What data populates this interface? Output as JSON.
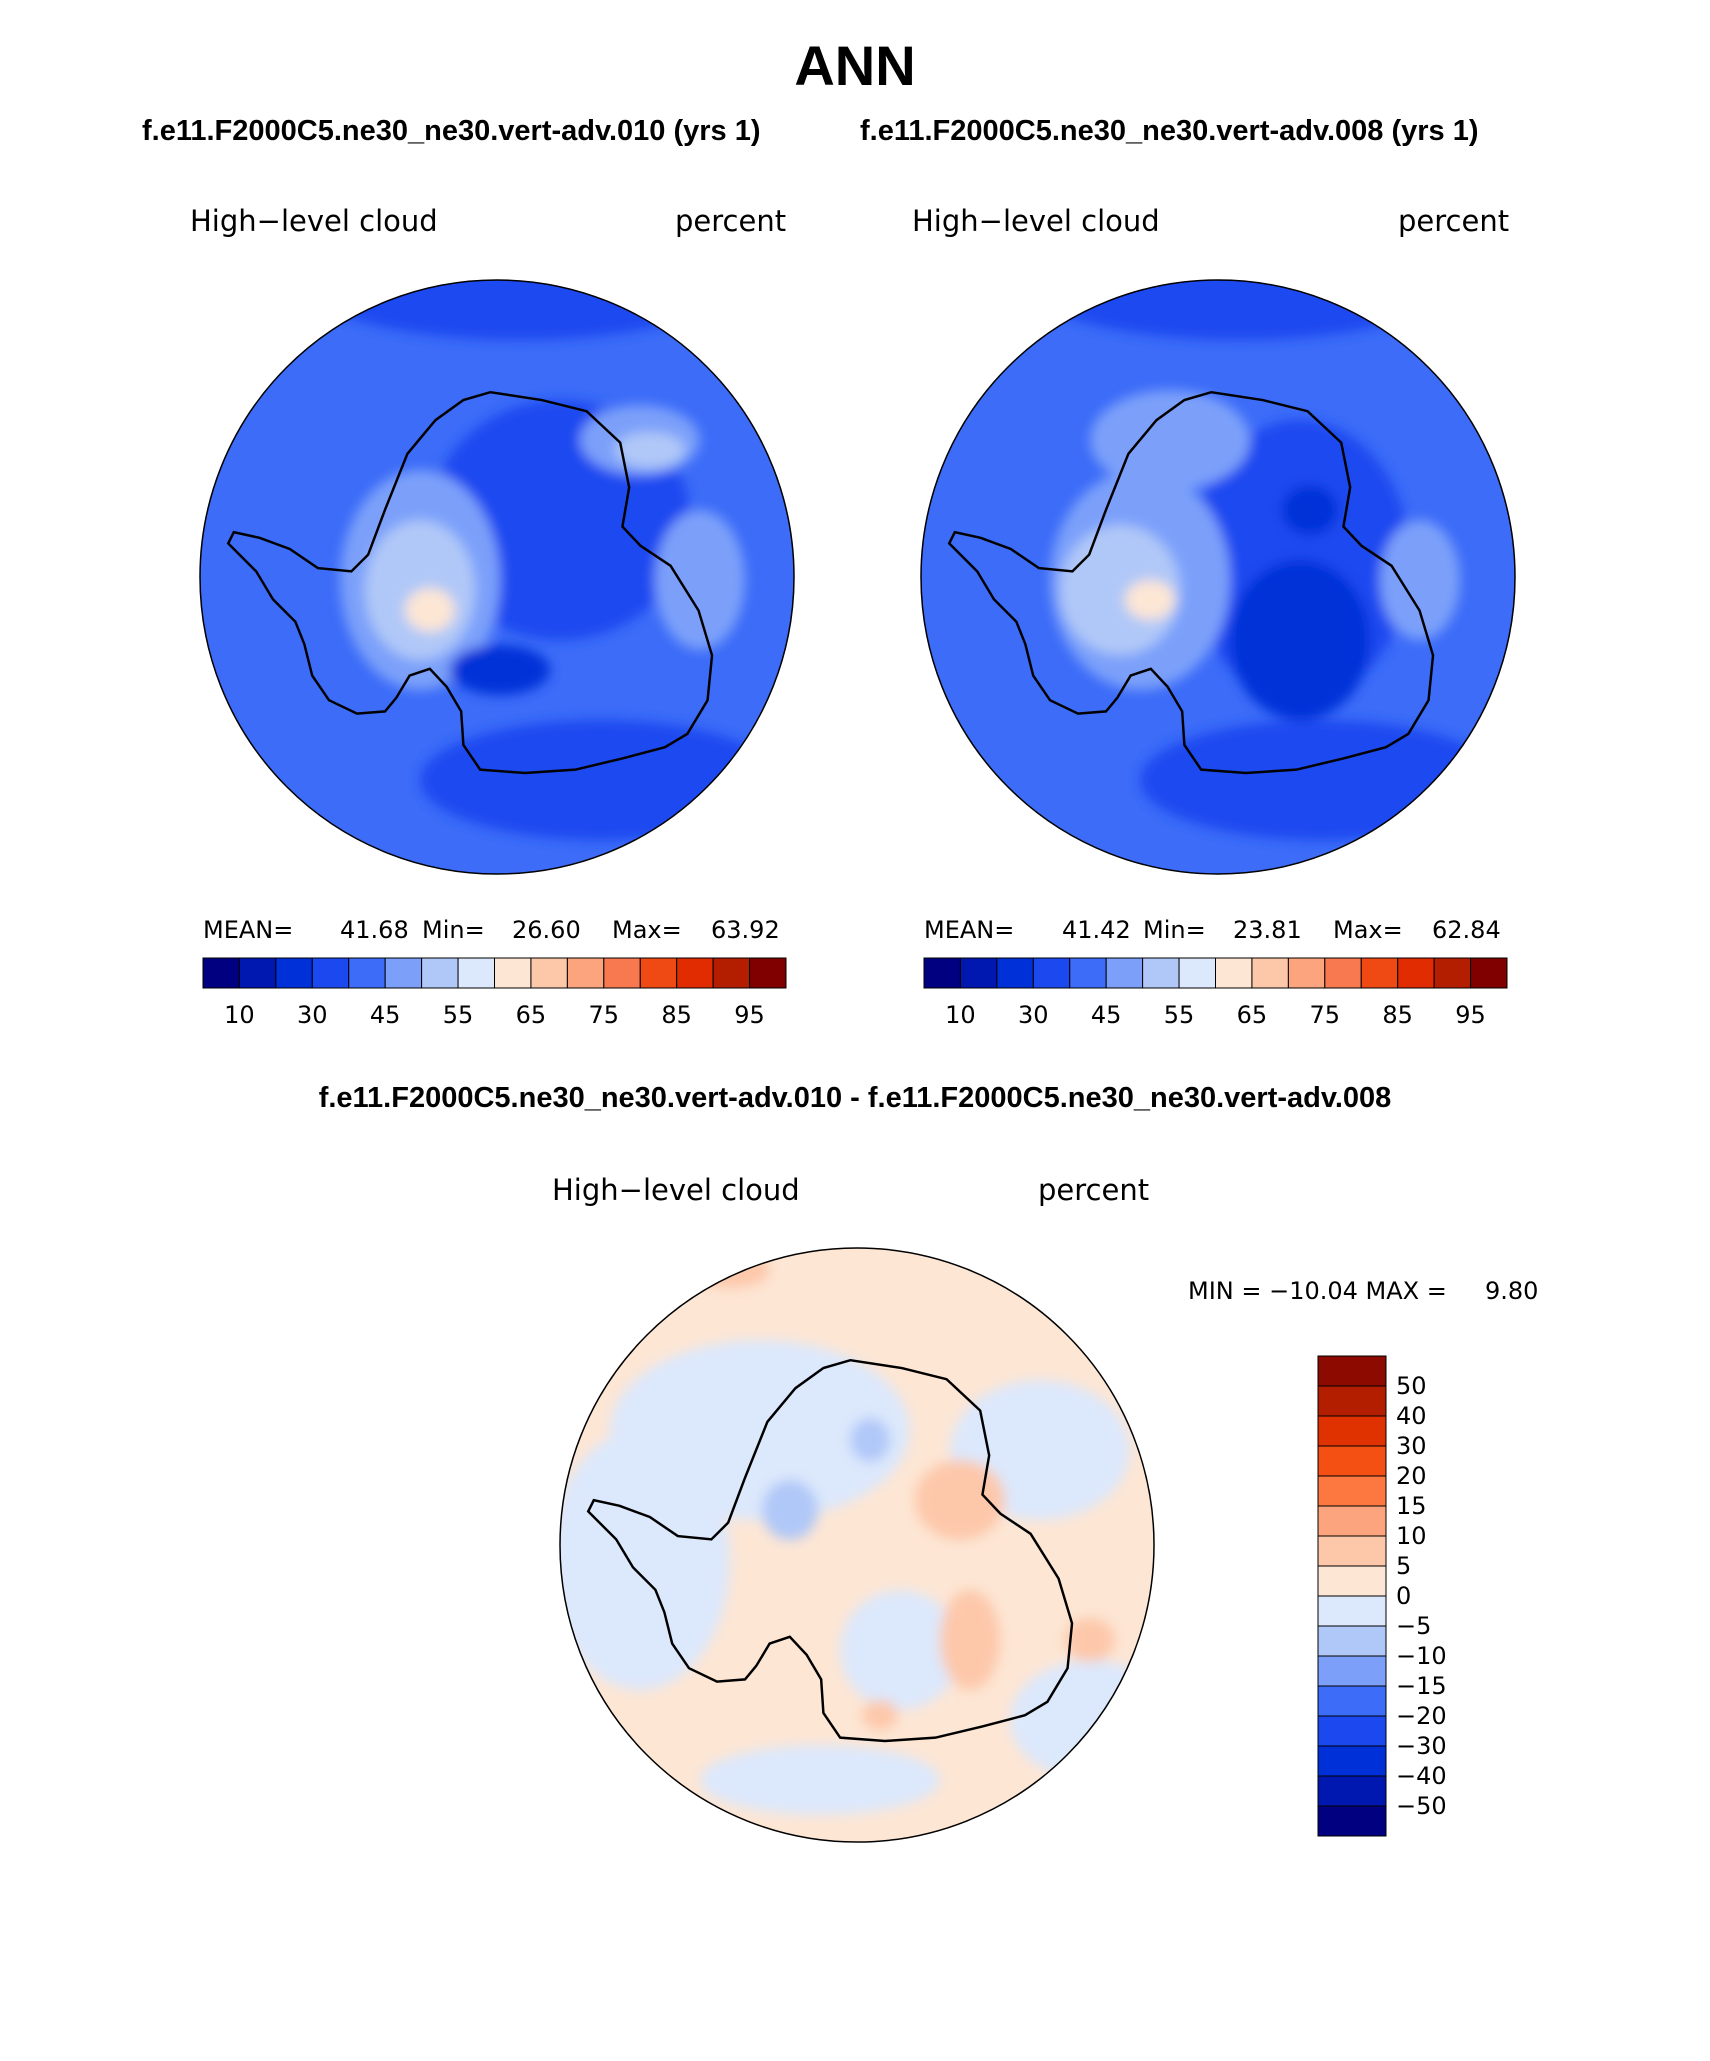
{
  "figure": {
    "title": "ANN",
    "subtitle_left": "f.e11.F2000C5.ne30_ne30.vert-adv.010 (yrs 1)",
    "subtitle_right": "f.e11.F2000C5.ne30_ne30.vert-adv.008 (yrs 1)",
    "diff_title": "f.e11.F2000C5.ne30_ne30.vert-adv.010 - f.e11.F2000C5.ne30_ne30.vert-adv.008"
  },
  "panels": {
    "left": {
      "variable": "High−level cloud",
      "units": "percent",
      "stats": {
        "mean_label": "MEAN=",
        "mean": "41.68",
        "min_label": "Min=",
        "min": "26.60",
        "max_label": "Max=",
        "max": "63.92"
      }
    },
    "right": {
      "variable": "High−level cloud",
      "units": "percent",
      "stats": {
        "mean_label": "MEAN=",
        "mean": "41.42",
        "min_label": "Min=",
        "min": "23.81",
        "max_label": "Max=",
        "max": "62.84"
      }
    },
    "diff": {
      "variable": "High−level cloud",
      "units": "percent",
      "minmax_text": "MIN = −10.04 MAX =     9.80"
    }
  },
  "chart_data": [
    {
      "type": "heatmap",
      "projection": "south polar stereographic",
      "title": "High−level cloud",
      "units": "percent",
      "stats": {
        "mean": 41.68,
        "min": 26.6,
        "max": 63.92
      },
      "colorbar": {
        "colors": [
          "#000080",
          "#0018b0",
          "#0030d8",
          "#1c48f0",
          "#3c6cf8",
          "#7ca0fa",
          "#b0c8f8",
          "#dce8fc",
          "#fde6d4",
          "#fdc8aa",
          "#fca47e",
          "#f87850",
          "#f04a14",
          "#e02c00",
          "#b41e00",
          "#800000"
        ],
        "tick_labels": [
          "10",
          "30",
          "45",
          "55",
          "65",
          "75",
          "85",
          "95"
        ]
      }
    },
    {
      "type": "heatmap",
      "projection": "south polar stereographic",
      "title": "High−level cloud",
      "units": "percent",
      "stats": {
        "mean": 41.42,
        "min": 23.81,
        "max": 62.84
      },
      "colorbar": {
        "colors": [
          "#000080",
          "#0018b0",
          "#0030d8",
          "#1c48f0",
          "#3c6cf8",
          "#7ca0fa",
          "#b0c8f8",
          "#dce8fc",
          "#fde6d4",
          "#fdc8aa",
          "#fca47e",
          "#f87850",
          "#f04a14",
          "#e02c00",
          "#b41e00",
          "#800000"
        ],
        "tick_labels": [
          "10",
          "30",
          "45",
          "55",
          "65",
          "75",
          "85",
          "95"
        ]
      }
    },
    {
      "type": "heatmap",
      "projection": "south polar stereographic",
      "title": "High−level cloud",
      "units": "percent",
      "stats": {
        "min": -10.04,
        "max": 9.8
      },
      "colorbar": {
        "orientation": "vertical",
        "colors_top_to_bottom": [
          "#8c0a00",
          "#b41e00",
          "#e03200",
          "#f45014",
          "#fc7840",
          "#fca47e",
          "#fdc8aa",
          "#fde6d4",
          "#dce8fc",
          "#b0c8f8",
          "#7ca0fa",
          "#3c6cf8",
          "#1c48f0",
          "#0030d8",
          "#0018b0",
          "#000080"
        ],
        "tick_labels_top_to_bottom": [
          "50",
          "40",
          "30",
          "20",
          "15",
          "10",
          "5",
          "0",
          "−5",
          "−10",
          "−15",
          "−20",
          "−30",
          "−40",
          "−50"
        ]
      }
    }
  ]
}
